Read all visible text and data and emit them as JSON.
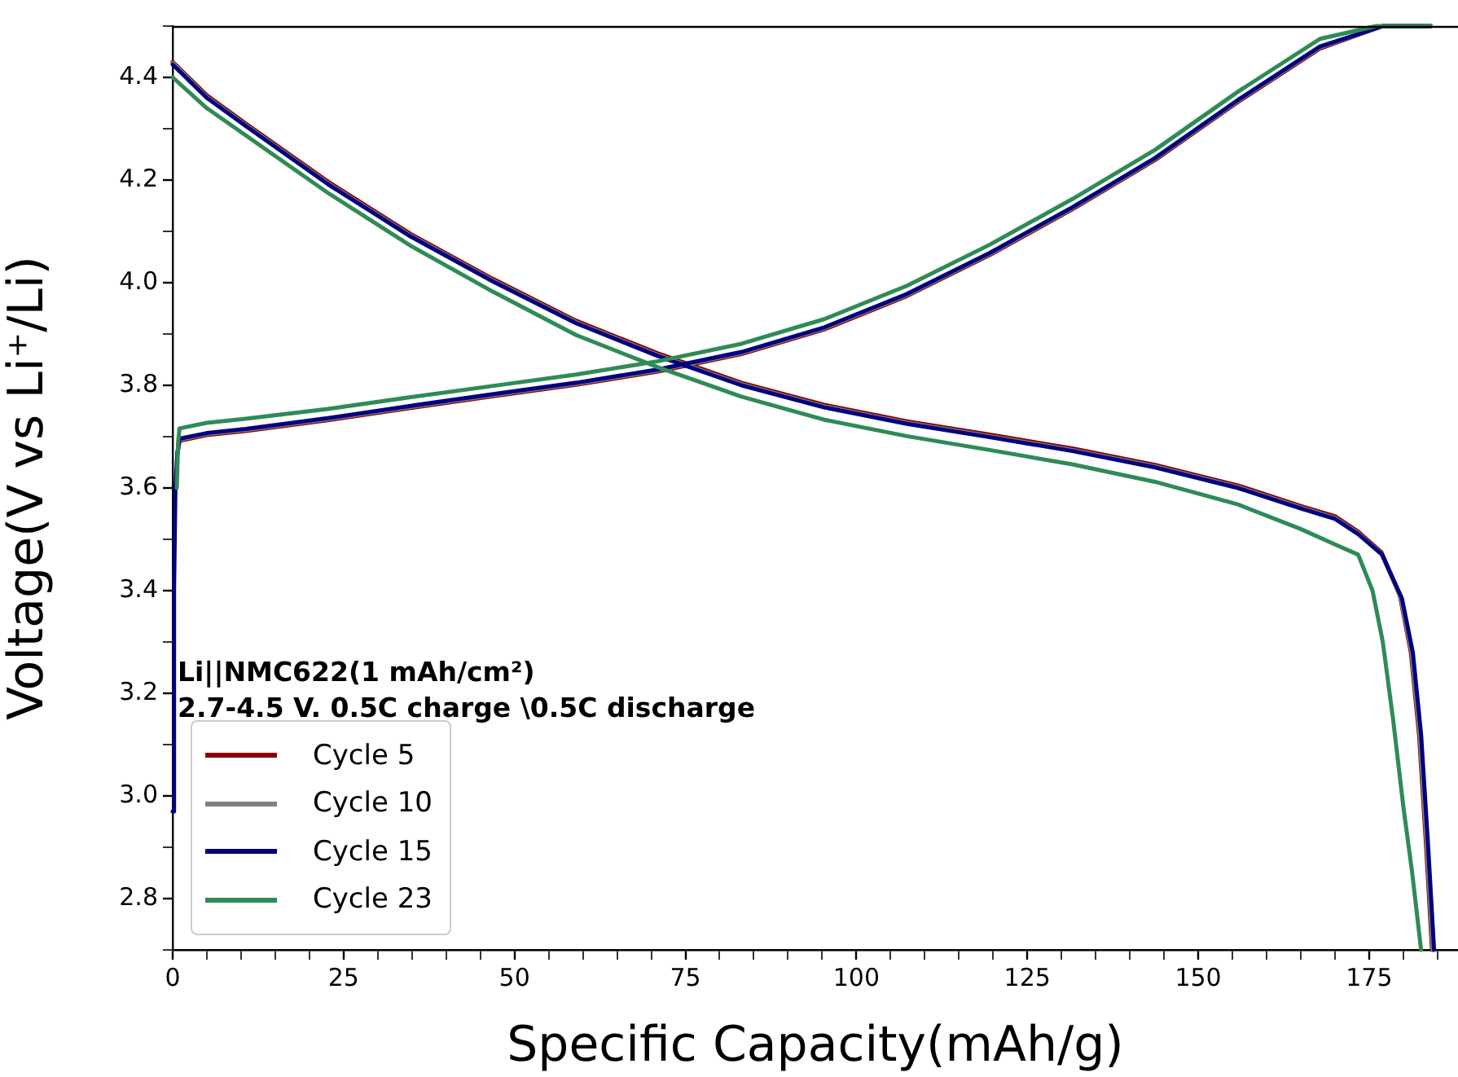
{
  "chart_data": {
    "type": "line",
    "xlabel": "Specific Capacity(mAh/g)",
    "ylabel": "Voltage(V vs Li⁺/Li)",
    "annotations": [
      "Li||NMC622(1 mAh/cm²)",
      "2.7-4.5 V. 0.5C charge \\0.5C discharge"
    ],
    "xlim": [
      0,
      188
    ],
    "ylim": [
      2.7,
      4.5
    ],
    "xticks": [
      0,
      {
        "value": 5,
        "label": null
      },
      {
        "value": 10,
        "label": null
      },
      {
        "value": 15,
        "label": null
      },
      {
        "value": 20,
        "label": null
      },
      25,
      {
        "value": 30,
        "label": null
      },
      {
        "value": 35,
        "label": null
      },
      {
        "value": 40,
        "label": null
      },
      {
        "value": 45,
        "label": null
      },
      50,
      {
        "value": 55,
        "label": null
      },
      {
        "value": 60,
        "label": null
      },
      {
        "value": 65,
        "label": null
      },
      {
        "value": 70,
        "label": null
      },
      75,
      {
        "value": 80,
        "label": null
      },
      {
        "value": 85,
        "label": null
      },
      {
        "value": 90,
        "label": null
      },
      {
        "value": 95,
        "label": null
      },
      100,
      {
        "value": 105,
        "label": null
      },
      {
        "value": 110,
        "label": null
      },
      {
        "value": 115,
        "label": null
      },
      {
        "value": 120,
        "label": null
      },
      125,
      {
        "value": 130,
        "label": null
      },
      {
        "value": 135,
        "label": null
      },
      {
        "value": 140,
        "label": null
      },
      {
        "value": 145,
        "label": null
      },
      150,
      {
        "value": 155,
        "label": null
      },
      {
        "value": 160,
        "label": null
      },
      {
        "value": 165,
        "label": null
      },
      {
        "value": 170,
        "label": null
      },
      175,
      {
        "value": 180,
        "label": null
      },
      {
        "value": 185,
        "label": null
      }
    ],
    "yticks": [
      {
        "value": 2.7,
        "label": null
      },
      2.8,
      {
        "value": 2.9,
        "label": null
      },
      {
        "value": 3.0,
        "label": "3.0"
      },
      {
        "value": 3.1,
        "label": null
      },
      3.2,
      {
        "value": 3.3,
        "label": null
      },
      3.4,
      {
        "value": 3.5,
        "label": null
      },
      3.6,
      {
        "value": 3.7,
        "label": null
      },
      3.8,
      {
        "value": 3.9,
        "label": null
      },
      {
        "value": 4.0,
        "label": "4.0"
      },
      {
        "value": 4.1,
        "label": null
      },
      4.2,
      {
        "value": 4.3,
        "label": null
      },
      4.4,
      {
        "value": 4.5,
        "label": null
      }
    ],
    "grid": false,
    "legend": "bottom left",
    "marker": "none",
    "line_style": "solid",
    "series": [
      {
        "name": "Cycle 5",
        "color": "#8b0000",
        "x": [
          0,
          5,
          10.7,
          22.7,
          34.8,
          46.9,
          59,
          71,
          83.2,
          95.3,
          107.4,
          119.5,
          131.6,
          143.7,
          155.8,
          165,
          170,
          173.4,
          176.8,
          179.5,
          181.1,
          182.3,
          183.3,
          184.2
        ],
        "values": [
          4.43,
          4.365,
          4.31,
          4.197,
          4.095,
          4.007,
          3.926,
          3.862,
          3.805,
          3.762,
          3.73,
          3.704,
          3.677,
          3.645,
          3.605,
          3.565,
          3.545,
          3.515,
          3.475,
          3.39,
          3.28,
          3.12,
          2.91,
          2.7
        ]
      },
      {
        "color": "#8b0000",
        "x": [
          0.7,
          1,
          5,
          10.7,
          22.7,
          34.8,
          46.9,
          59,
          71,
          83.2,
          95.3,
          107.4,
          119.5,
          131.6,
          143.7,
          155.8,
          167.8,
          177,
          184
        ],
        "values": [
          3.665,
          3.692,
          3.703,
          3.711,
          3.732,
          3.756,
          3.779,
          3.801,
          3.827,
          3.861,
          3.909,
          3.974,
          4.054,
          4.143,
          4.239,
          4.352,
          4.456,
          4.5,
          4.5
        ]
      },
      {
        "name": "Cycle 10",
        "color": "#808080",
        "x": [
          0,
          5,
          10.7,
          22.7,
          34.8,
          46.9,
          59,
          71,
          83.2,
          95.3,
          107.4,
          119.5,
          131.6,
          143.7,
          155.8,
          165,
          170,
          173.4,
          176.8,
          179.6,
          181.2,
          182.4,
          183.4,
          184.3
        ],
        "values": [
          4.428,
          4.362,
          4.307,
          4.194,
          4.092,
          4.004,
          3.923,
          3.859,
          3.802,
          3.759,
          3.727,
          3.701,
          3.674,
          3.642,
          3.602,
          3.562,
          3.542,
          3.512,
          3.472,
          3.387,
          3.28,
          3.12,
          2.91,
          2.7
        ]
      },
      {
        "color": "#808080",
        "x": [
          0.7,
          1,
          5,
          10.7,
          22.7,
          34.8,
          46.9,
          59,
          71,
          83.2,
          95.3,
          107.4,
          119.5,
          131.6,
          143.7,
          155.8,
          167.8,
          177,
          184
        ],
        "values": [
          3.668,
          3.694,
          3.705,
          3.713,
          3.734,
          3.758,
          3.781,
          3.803,
          3.829,
          3.863,
          3.911,
          3.976,
          4.056,
          4.145,
          4.241,
          4.354,
          4.458,
          4.5,
          4.5
        ]
      },
      {
        "name": "Cycle 15",
        "color": "#000080",
        "x": [
          0,
          5,
          10.7,
          22.7,
          34.8,
          46.9,
          59,
          71,
          83.2,
          95.3,
          107.4,
          119.5,
          131.6,
          143.7,
          155.8,
          165,
          170,
          173.4,
          176.9,
          179.8,
          181.4,
          182.6,
          183.6,
          184.5
        ],
        "values": [
          4.425,
          4.36,
          4.305,
          4.192,
          4.09,
          4.002,
          3.921,
          3.857,
          3.8,
          3.757,
          3.725,
          3.699,
          3.672,
          3.64,
          3.6,
          3.56,
          3.54,
          3.51,
          3.47,
          3.385,
          3.279,
          3.12,
          2.909,
          2.7
        ]
      },
      {
        "color": "#000080",
        "x": [
          0,
          0.2,
          0.4,
          0.7,
          1,
          5,
          10.7,
          22.7,
          34.8,
          46.9,
          59,
          71,
          83.2,
          95.3,
          107.4,
          119.5,
          131.6,
          143.7,
          155.8,
          167.8,
          177,
          184
        ],
        "values": [
          2.97,
          3.4,
          3.6,
          3.67,
          3.696,
          3.707,
          3.715,
          3.736,
          3.76,
          3.783,
          3.805,
          3.831,
          3.865,
          3.913,
          3.978,
          4.058,
          4.147,
          4.243,
          4.356,
          4.46,
          4.5,
          4.5
        ]
      },
      {
        "name": "Cycle 23",
        "color": "#2e8b57",
        "x": [
          0,
          5,
          10.7,
          22.7,
          34.8,
          46.9,
          59,
          71,
          83.2,
          95.3,
          107.4,
          119.5,
          131.6,
          143.7,
          155.8,
          165,
          170,
          173.4,
          175.5,
          177,
          178.5,
          180,
          181.3,
          182.6
        ],
        "values": [
          4.4,
          4.34,
          4.287,
          4.175,
          4.072,
          3.982,
          3.898,
          3.835,
          3.778,
          3.733,
          3.701,
          3.674,
          3.646,
          3.612,
          3.568,
          3.52,
          3.49,
          3.47,
          3.4,
          3.3,
          3.15,
          2.98,
          2.85,
          2.7
        ]
      },
      {
        "color": "#2e8b57",
        "x": [
          0.6,
          0.8,
          1,
          5,
          10.7,
          22.7,
          34.8,
          46.9,
          59,
          71,
          83.2,
          95.3,
          107.4,
          119.5,
          131.6,
          143.7,
          155.8,
          167.8,
          176,
          184
        ],
        "values": [
          3.6,
          3.69,
          3.716,
          3.727,
          3.735,
          3.754,
          3.777,
          3.799,
          3.821,
          3.847,
          3.881,
          3.929,
          3.994,
          4.074,
          4.163,
          4.259,
          4.372,
          4.475,
          4.5,
          4.5
        ]
      }
    ]
  }
}
